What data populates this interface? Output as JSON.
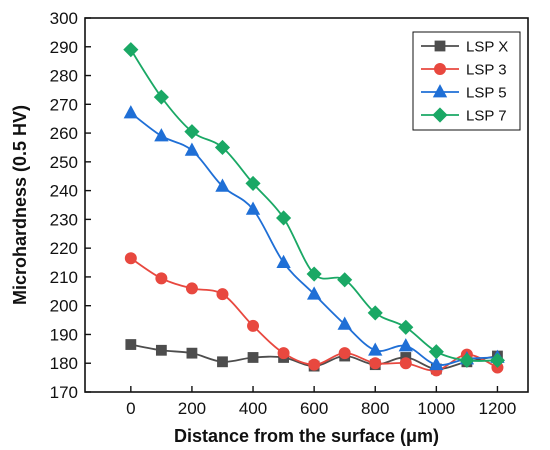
{
  "chart_data": {
    "type": "line",
    "title": "",
    "xlabel": "Distance from the surface (μm)",
    "ylabel": "Microhardness (0.5 HV)",
    "xlim": [
      -150,
      1300
    ],
    "ylim": [
      170,
      300
    ],
    "xticks": [
      0,
      200,
      400,
      600,
      800,
      1000,
      1200
    ],
    "yticks": [
      170,
      180,
      190,
      200,
      210,
      220,
      230,
      240,
      250,
      260,
      270,
      280,
      290,
      300
    ],
    "grid": false,
    "legend_position": "top-right",
    "series": [
      {
        "name": "LSP X",
        "color": "#4d4d4d",
        "marker": "square",
        "x": [
          0,
          100,
          200,
          300,
          400,
          500,
          600,
          700,
          800,
          900,
          1000,
          1100,
          1200
        ],
        "y": [
          186.5,
          184.5,
          183.5,
          180.5,
          182.0,
          182.0,
          179.0,
          182.5,
          179.5,
          182.0,
          178.0,
          180.5,
          182.5
        ]
      },
      {
        "name": "LSP 3",
        "color": "#e8483f",
        "marker": "circle",
        "x": [
          0,
          100,
          200,
          300,
          400,
          500,
          600,
          700,
          800,
          900,
          1000,
          1100,
          1200
        ],
        "y": [
          216.5,
          209.5,
          206.0,
          204.0,
          193.0,
          183.5,
          179.5,
          183.5,
          180.0,
          180.0,
          177.5,
          183.0,
          178.5
        ]
      },
      {
        "name": "LSP 5",
        "color": "#1f6fd6",
        "marker": "triangle",
        "x": [
          0,
          100,
          200,
          300,
          400,
          500,
          600,
          700,
          800,
          900,
          1000,
          1100,
          1200
        ],
        "y": [
          267.0,
          259.0,
          254.0,
          241.5,
          233.5,
          215.0,
          204.0,
          193.5,
          184.5,
          186.0,
          179.5,
          181.5,
          182.0
        ]
      },
      {
        "name": "LSP 7",
        "color": "#1aa865",
        "marker": "diamond",
        "x": [
          0,
          100,
          200,
          300,
          400,
          500,
          600,
          700,
          800,
          900,
          1000,
          1100,
          1200
        ],
        "y": [
          289.0,
          272.5,
          260.5,
          255.0,
          242.5,
          230.5,
          211.0,
          209.0,
          197.5,
          192.5,
          184.0,
          181.0,
          181.0
        ]
      }
    ]
  }
}
